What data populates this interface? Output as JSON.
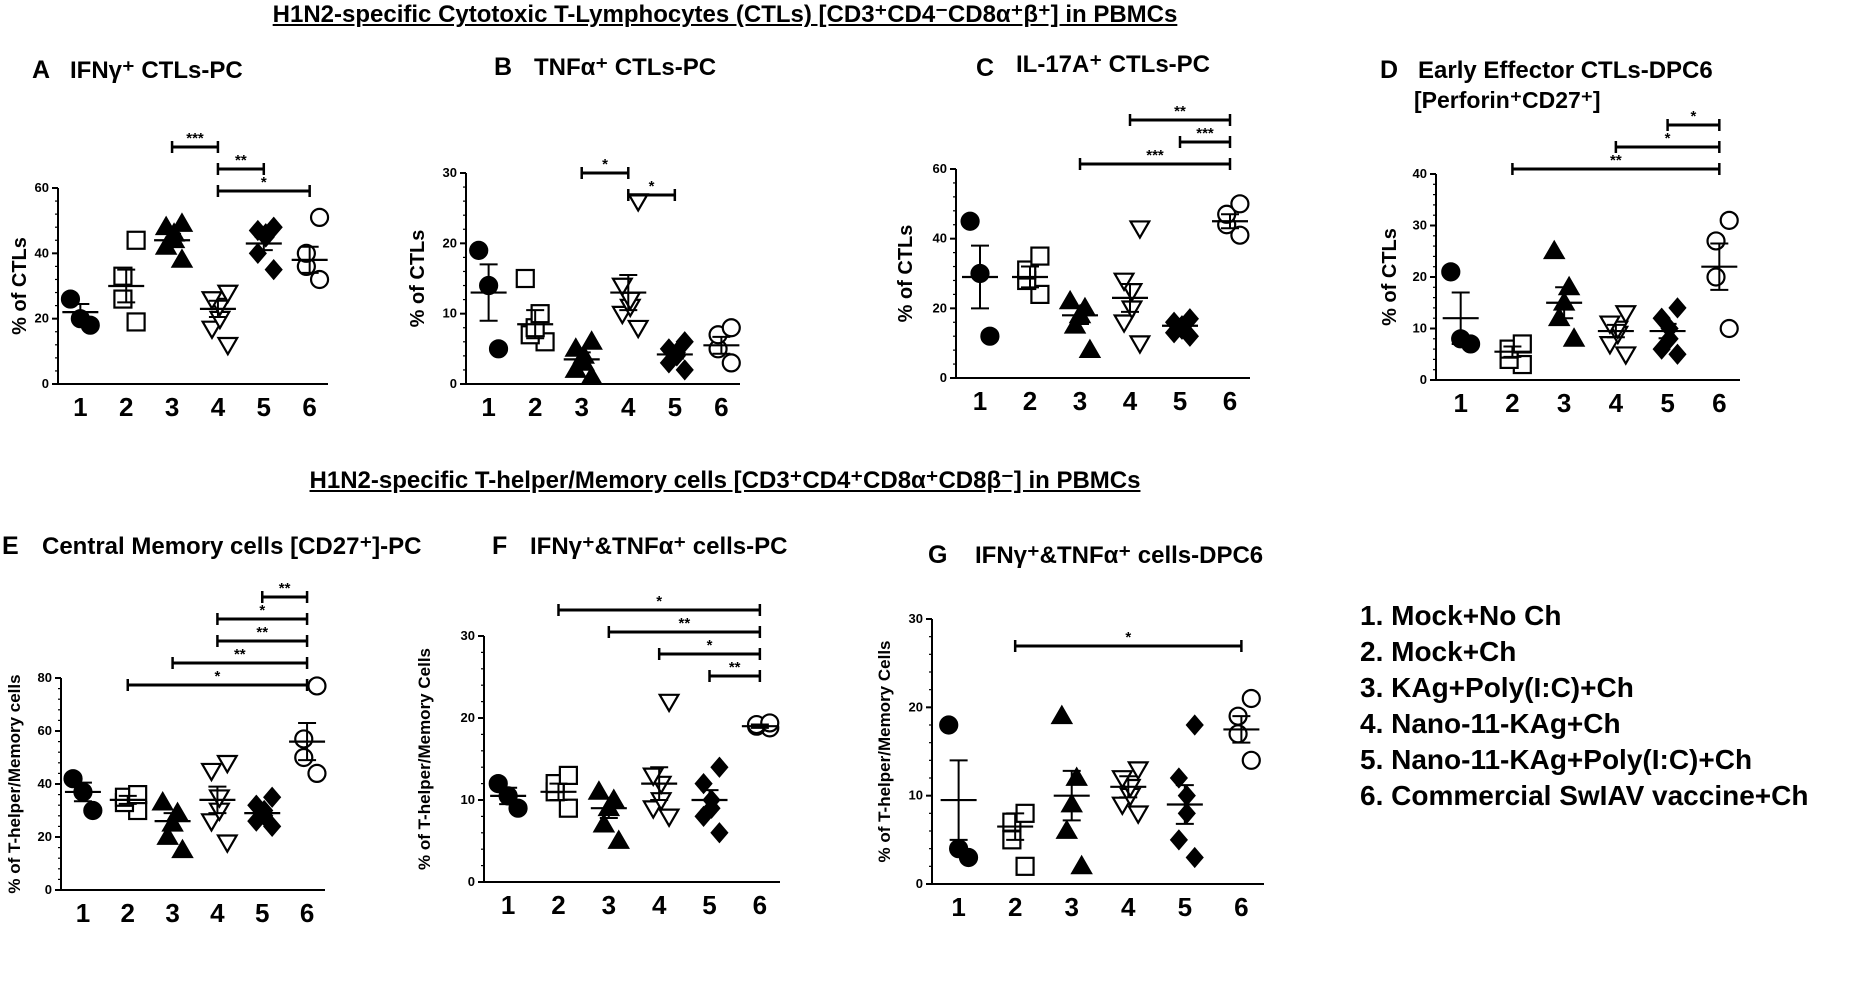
{
  "section_titles": {
    "top": "H1N2-specific Cytotoxic T-Lymphocytes (CTLs) [CD3⁺CD4⁻CD8α⁺β⁺] in PBMCs",
    "bottom": "H1N2-specific T-helper/Memory cells [CD3⁺CD4⁺CD8α⁺CD8β⁻] in PBMCs"
  },
  "legend": {
    "items": [
      "1.  Mock+No Ch",
      "2.  Mock+Ch",
      "3.  KAg+Poly(I:C)+Ch",
      "4.  Nano-11-KAg+Ch",
      "5.  Nano-11-KAg+Poly(I:C)+Ch",
      "6.  Commercial SwIAV vaccine+Ch"
    ]
  },
  "colors": {
    "ink": "#000000",
    "background": "#ffffff"
  },
  "chart_data": [
    {
      "type": "scatter",
      "panel": "A",
      "title": "IFNγ⁺ CTLs-PC",
      "subtitle": "",
      "ylabel": "% of CTLs",
      "ylim": [
        0,
        60
      ],
      "yticks": [
        0,
        20,
        40,
        60
      ],
      "categories": [
        "1",
        "2",
        "3",
        "4",
        "5",
        "6"
      ],
      "groups": [
        {
          "category": "1",
          "marker": "circle-filled",
          "values": [
            18,
            20,
            26
          ],
          "mean": 22,
          "sem": 2.5
        },
        {
          "category": "2",
          "marker": "square-open",
          "values": [
            19,
            26,
            33,
            44
          ],
          "mean": 30,
          "sem": 5
        },
        {
          "category": "3",
          "marker": "triangle-filled",
          "values": [
            38,
            42,
            44,
            46,
            48,
            49
          ],
          "mean": 44,
          "sem": 2
        },
        {
          "category": "4",
          "marker": "triangle-down-open",
          "values": [
            12,
            17,
            20,
            24,
            26,
            28
          ],
          "mean": 23,
          "sem": 2.5
        },
        {
          "category": "5",
          "marker": "diamond-filled",
          "values": [
            35,
            40,
            45,
            46,
            47,
            48
          ],
          "mean": 43,
          "sem": 2
        },
        {
          "category": "6",
          "marker": "circle-open",
          "values": [
            32,
            36,
            40,
            51
          ],
          "mean": 38,
          "sem": 4
        }
      ],
      "significance": [
        {
          "from": "3",
          "to": "4",
          "label": "***"
        },
        {
          "from": "4",
          "to": "5",
          "label": "**"
        },
        {
          "from": "4",
          "to": "6",
          "label": "*"
        }
      ]
    },
    {
      "type": "scatter",
      "panel": "B",
      "title": "TNFα⁺ CTLs-PC",
      "subtitle": "",
      "ylabel": "% of CTLs",
      "ylim": [
        0,
        30
      ],
      "yticks": [
        0,
        10,
        20,
        30
      ],
      "categories": [
        "1",
        "2",
        "3",
        "4",
        "5",
        "6"
      ],
      "groups": [
        {
          "category": "1",
          "marker": "circle-filled",
          "values": [
            5,
            14,
            19
          ],
          "mean": 13,
          "sem": 4
        },
        {
          "category": "2",
          "marker": "square-open",
          "values": [
            6,
            7,
            8,
            10,
            15
          ],
          "mean": 8.5,
          "sem": 2
        },
        {
          "category": "3",
          "marker": "triangle-filled",
          "values": [
            1,
            2,
            3,
            4,
            5,
            6
          ],
          "mean": 3.5,
          "sem": 1
        },
        {
          "category": "4",
          "marker": "triangle-down-open",
          "values": [
            8,
            10,
            11,
            12,
            14,
            26
          ],
          "mean": 13,
          "sem": 2.5
        },
        {
          "category": "5",
          "marker": "diamond-filled",
          "values": [
            2,
            3,
            4,
            4.5,
            5,
            6
          ],
          "mean": 4.2,
          "sem": 0.6
        },
        {
          "category": "6",
          "marker": "circle-open",
          "values": [
            3,
            5,
            7,
            8
          ],
          "mean": 5.5,
          "sem": 1.2
        }
      ],
      "significance": [
        {
          "from": "3",
          "to": "4",
          "label": "*"
        },
        {
          "from": "4",
          "to": "5",
          "label": "*"
        }
      ]
    },
    {
      "type": "scatter",
      "panel": "C",
      "title": "IL-17A⁺ CTLs-PC",
      "subtitle": "",
      "ylabel": "% of CTLs",
      "ylim": [
        0,
        60
      ],
      "yticks": [
        0,
        20,
        40,
        60
      ],
      "categories": [
        "1",
        "2",
        "3",
        "4",
        "5",
        "6"
      ],
      "groups": [
        {
          "category": "1",
          "marker": "circle-filled",
          "values": [
            12,
            30,
            45
          ],
          "mean": 29,
          "sem": 9
        },
        {
          "category": "2",
          "marker": "square-open",
          "values": [
            24,
            28,
            31,
            35
          ],
          "mean": 29,
          "sem": 3
        },
        {
          "category": "3",
          "marker": "triangle-filled",
          "values": [
            8,
            15,
            18,
            20,
            22
          ],
          "mean": 18,
          "sem": 2.5
        },
        {
          "category": "4",
          "marker": "triangle-down-open",
          "values": [
            10,
            16,
            20,
            25,
            28,
            43
          ],
          "mean": 23,
          "sem": 4
        },
        {
          "category": "5",
          "marker": "diamond-filled",
          "values": [
            12,
            13,
            14,
            15,
            16,
            17
          ],
          "mean": 15,
          "sem": 0.8
        },
        {
          "category": "6",
          "marker": "circle-open",
          "values": [
            41,
            44,
            47,
            50
          ],
          "mean": 45,
          "sem": 2
        }
      ],
      "significance": [
        {
          "from": "4",
          "to": "6",
          "label": "**"
        },
        {
          "from": "5",
          "to": "6",
          "label": "***"
        },
        {
          "from": "3",
          "to": "6",
          "label": "***"
        }
      ]
    },
    {
      "type": "scatter",
      "panel": "D",
      "title": "Early Effector CTLs-DPC6",
      "subtitle": "[Perforin⁺CD27⁺]",
      "ylabel": "% of CTLs",
      "ylim": [
        0,
        40
      ],
      "yticks": [
        0,
        10,
        20,
        30,
        40
      ],
      "categories": [
        "1",
        "2",
        "3",
        "4",
        "5",
        "6"
      ],
      "groups": [
        {
          "category": "1",
          "marker": "circle-filled",
          "values": [
            7,
            8,
            21
          ],
          "mean": 12,
          "sem": 5
        },
        {
          "category": "2",
          "marker": "square-open",
          "values": [
            3,
            4,
            6,
            7
          ],
          "mean": 5.5,
          "sem": 1
        },
        {
          "category": "3",
          "marker": "triangle-filled",
          "values": [
            8,
            12,
            15,
            18,
            25
          ],
          "mean": 15,
          "sem": 3
        },
        {
          "category": "4",
          "marker": "triangle-down-open",
          "values": [
            5,
            7,
            9,
            10,
            11,
            13
          ],
          "mean": 9.5,
          "sem": 1.2
        },
        {
          "category": "5",
          "marker": "diamond-filled",
          "values": [
            5,
            6,
            8,
            10,
            12,
            14
          ],
          "mean": 9.5,
          "sem": 1.4
        },
        {
          "category": "6",
          "marker": "circle-open",
          "values": [
            10,
            20,
            27,
            31
          ],
          "mean": 22,
          "sem": 4.5
        }
      ],
      "significance": [
        {
          "from": "5",
          "to": "6",
          "label": "*"
        },
        {
          "from": "4",
          "to": "6",
          "label": "*"
        },
        {
          "from": "2",
          "to": "6",
          "label": "**"
        }
      ]
    },
    {
      "type": "scatter",
      "panel": "E",
      "title": "Central Memory cells [CD27⁺]-PC",
      "subtitle": "",
      "ylabel": "% of T-helper/Memory cells",
      "ylim": [
        0,
        80
      ],
      "yticks": [
        0,
        20,
        40,
        60,
        80
      ],
      "categories": [
        "1",
        "2",
        "3",
        "4",
        "5",
        "6"
      ],
      "groups": [
        {
          "category": "1",
          "marker": "circle-filled",
          "values": [
            30,
            37,
            42
          ],
          "mean": 37,
          "sem": 3.5
        },
        {
          "category": "2",
          "marker": "square-open",
          "values": [
            30,
            33,
            35,
            36
          ],
          "mean": 34,
          "sem": 1.5
        },
        {
          "category": "3",
          "marker": "triangle-filled",
          "values": [
            15,
            20,
            25,
            29,
            33
          ],
          "mean": 26,
          "sem": 3
        },
        {
          "category": "4",
          "marker": "triangle-down-open",
          "values": [
            18,
            26,
            30,
            35,
            45,
            48
          ],
          "mean": 34,
          "sem": 5
        },
        {
          "category": "5",
          "marker": "diamond-filled",
          "values": [
            24,
            26,
            28,
            30,
            32,
            35
          ],
          "mean": 29,
          "sem": 1.5
        },
        {
          "category": "6",
          "marker": "circle-open",
          "values": [
            44,
            50,
            57,
            77
          ],
          "mean": 56,
          "sem": 7
        }
      ],
      "significance": [
        {
          "from": "5",
          "to": "6",
          "label": "**"
        },
        {
          "from": "4",
          "to": "6",
          "label": "*"
        },
        {
          "from": "4",
          "to": "6",
          "label": "**"
        },
        {
          "from": "3",
          "to": "6",
          "label": "**"
        },
        {
          "from": "2",
          "to": "6",
          "label": "*"
        }
      ]
    },
    {
      "type": "scatter",
      "panel": "F",
      "title": "IFNγ⁺&TNFα⁺ cells-PC",
      "subtitle": "",
      "ylabel": "% of T-helper/Memory Cells",
      "ylim": [
        0,
        30
      ],
      "yticks": [
        0,
        10,
        20,
        30
      ],
      "categories": [
        "1",
        "2",
        "3",
        "4",
        "5",
        "6"
      ],
      "groups": [
        {
          "category": "1",
          "marker": "circle-filled",
          "values": [
            9,
            10.5,
            12
          ],
          "mean": 10.5,
          "sem": 1
        },
        {
          "category": "2",
          "marker": "square-open",
          "values": [
            9,
            11,
            12,
            13
          ],
          "mean": 11,
          "sem": 1
        },
        {
          "category": "3",
          "marker": "triangle-filled",
          "values": [
            5,
            7,
            9,
            10,
            11
          ],
          "mean": 9,
          "sem": 1.2
        },
        {
          "category": "4",
          "marker": "triangle-down-open",
          "values": [
            8,
            9,
            10,
            12,
            13,
            22
          ],
          "mean": 12,
          "sem": 2
        },
        {
          "category": "5",
          "marker": "diamond-filled",
          "values": [
            6,
            8,
            9,
            10,
            12,
            14
          ],
          "mean": 10,
          "sem": 1.2
        },
        {
          "category": "6",
          "marker": "circle-open",
          "values": [
            18.8,
            19,
            19.2,
            19.4
          ],
          "mean": 19,
          "sem": 0.2
        }
      ],
      "significance": [
        {
          "from": "2",
          "to": "6",
          "label": "*"
        },
        {
          "from": "3",
          "to": "6",
          "label": "**"
        },
        {
          "from": "4",
          "to": "6",
          "label": "*"
        },
        {
          "from": "5",
          "to": "6",
          "label": "**"
        }
      ]
    },
    {
      "type": "scatter",
      "panel": "G",
      "title": "IFNγ⁺&TNFα⁺ cells-DPC6",
      "subtitle": "",
      "ylabel": "% of T-helper/Memory  Cells",
      "ylim": [
        0,
        30
      ],
      "yticks": [
        0,
        10,
        20,
        30
      ],
      "categories": [
        "1",
        "2",
        "3",
        "4",
        "5",
        "6"
      ],
      "groups": [
        {
          "category": "1",
          "marker": "circle-filled",
          "values": [
            3,
            4,
            18
          ],
          "mean": 9.5,
          "sem": 4.5
        },
        {
          "category": "2",
          "marker": "square-open",
          "values": [
            2,
            5,
            7,
            8
          ],
          "mean": 6.5,
          "sem": 1.5
        },
        {
          "category": "3",
          "marker": "triangle-filled",
          "values": [
            2,
            6,
            9,
            12,
            19
          ],
          "mean": 10,
          "sem": 2.8
        },
        {
          "category": "4",
          "marker": "triangle-down-open",
          "values": [
            8,
            9,
            10,
            11,
            12,
            13
          ],
          "mean": 11,
          "sem": 1.2
        },
        {
          "category": "5",
          "marker": "diamond-filled",
          "values": [
            3,
            5,
            8,
            10,
            12,
            18
          ],
          "mean": 9,
          "sem": 2.2
        },
        {
          "category": "6",
          "marker": "circle-open",
          "values": [
            14,
            17,
            19,
            21
          ],
          "mean": 17.5,
          "sem": 1.5
        }
      ],
      "significance": [
        {
          "from": "2",
          "to": "6",
          "label": "*"
        }
      ]
    }
  ]
}
